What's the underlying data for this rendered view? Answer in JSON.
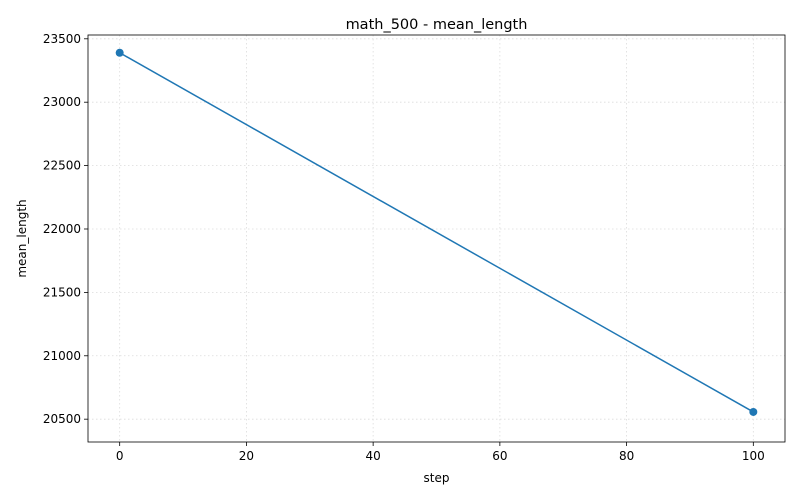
{
  "chart_data": {
    "type": "line",
    "title": "math_500 - mean_length",
    "xlabel": "step",
    "ylabel": "mean_length",
    "x": [
      0,
      100
    ],
    "series": [
      {
        "values": [
          23390,
          20557
        ],
        "color": "#1f77b4"
      }
    ],
    "xlim": [
      -5,
      105
    ],
    "ylim": [
      20320,
      23530
    ],
    "xticks": [
      0,
      20,
      40,
      60,
      80,
      100
    ],
    "yticks": [
      20500,
      21000,
      21500,
      22000,
      22500,
      23000,
      23500
    ],
    "grid": true,
    "legend": "none"
  }
}
